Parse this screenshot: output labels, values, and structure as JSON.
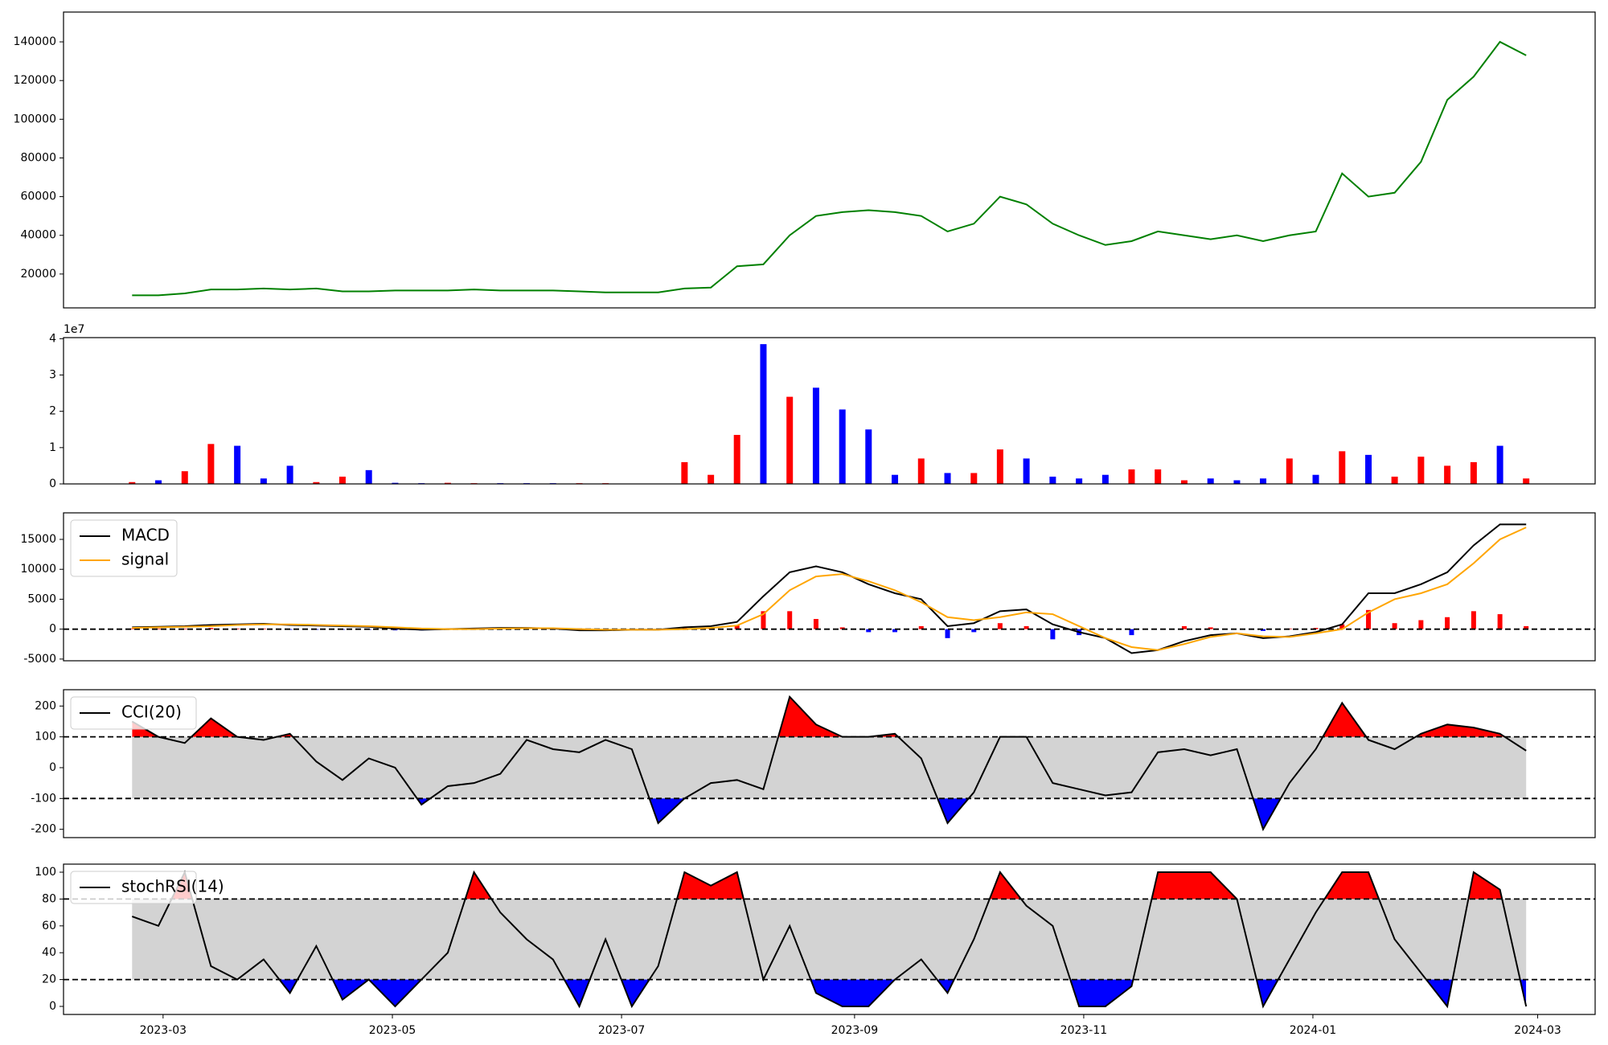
{
  "chart_data": [
    {
      "type": "line",
      "color": "#008000",
      "x": [
        2023.139,
        2023.1582,
        2023.1774,
        2023.1965,
        2023.2157,
        2023.2349,
        2023.2541,
        2023.2733,
        2023.2924,
        2023.3116,
        2023.3308,
        2023.35,
        2023.3692,
        2023.3883,
        2023.4075,
        2023.4267,
        2023.4459,
        2023.4651,
        2023.4842,
        2023.5034,
        2023.5226,
        2023.5418,
        2023.561,
        2023.5801,
        2023.5993,
        2023.6185,
        2023.6377,
        2023.6569,
        2023.676,
        2023.6952,
        2023.7144,
        2023.7336,
        2023.7528,
        2023.7719,
        2023.7911,
        2023.8103,
        2023.8295,
        2023.8487,
        2023.8678,
        2023.887,
        2023.9062,
        2023.9254,
        2023.9446,
        2023.9637,
        2023.9829,
        2024.0021,
        2024.0213,
        2024.0405,
        2024.0596,
        2024.0788,
        2024.098,
        2024.1172,
        2024.1364,
        2024.1555
      ],
      "values": [
        9000,
        9000,
        10000,
        12000,
        12000,
        12500,
        12000,
        12500,
        11000,
        11000,
        11500,
        11500,
        11500,
        12000,
        11500,
        11500,
        11500,
        11000,
        10500,
        10500,
        10500,
        12500,
        13000,
        24000,
        25000,
        40000,
        50000,
        52000,
        53000,
        52000,
        50000,
        42000,
        46000,
        60000,
        56000,
        46000,
        40000,
        35000,
        37000,
        42000,
        40000,
        38000,
        40000,
        37000,
        40000,
        42000,
        72000,
        60000,
        62000,
        78000,
        110000,
        122000,
        140000,
        133000
      ],
      "xlim": [
        2023.089,
        2024.2058
      ],
      "ylim": [
        2500,
        155400
      ],
      "yticks": [
        20000,
        40000,
        60000,
        80000,
        100000,
        120000,
        140000
      ]
    },
    {
      "type": "bar",
      "offset_label": "1e7",
      "x": [
        2023.139,
        2023.1582,
        2023.1774,
        2023.1965,
        2023.2157,
        2023.2349,
        2023.2541,
        2023.2733,
        2023.2924,
        2023.3116,
        2023.3308,
        2023.35,
        2023.3692,
        2023.3883,
        2023.4075,
        2023.4267,
        2023.4459,
        2023.4651,
        2023.4842,
        2023.5034,
        2023.5226,
        2023.5418,
        2023.561,
        2023.5801,
        2023.5993,
        2023.6185,
        2023.6377,
        2023.6569,
        2023.676,
        2023.6952,
        2023.7144,
        2023.7336,
        2023.7528,
        2023.7719,
        2023.7911,
        2023.8103,
        2023.8295,
        2023.8487,
        2023.8678,
        2023.887,
        2023.9062,
        2023.9254,
        2023.9446,
        2023.9637,
        2023.9829,
        2024.0021,
        2024.0213,
        2024.0405,
        2024.0596,
        2024.0788,
        2024.098,
        2024.1172,
        2024.1364,
        2024.1555
      ],
      "values": [
        500000,
        1000000,
        3500000,
        11000000,
        10500000,
        1500000,
        5000000,
        500000,
        2000000,
        3800000,
        300000,
        200000,
        300000,
        200000,
        200000,
        200000,
        200000,
        200000,
        200000,
        100000,
        100000,
        6000000,
        2500000,
        13500000,
        38500000,
        24000000,
        26500000,
        20500000,
        15000000,
        2500000,
        7000000,
        3000000,
        3000000,
        9500000,
        7000000,
        2000000,
        1500000,
        2500000,
        4000000,
        4000000,
        1000000,
        1500000,
        1000000,
        1500000,
        7000000,
        2500000,
        9000000,
        8000000,
        2000000,
        7500000,
        5000000,
        6000000,
        10500000,
        1500000
      ],
      "colors": [
        "red",
        "blue",
        "red",
        "red",
        "blue",
        "blue",
        "blue",
        "red",
        "red",
        "blue",
        "blue",
        "blue",
        "red",
        "red",
        "blue",
        "blue",
        "blue",
        "red",
        "red",
        "blue",
        "red",
        "red",
        "red",
        "red",
        "blue",
        "red",
        "blue",
        "blue",
        "blue",
        "blue",
        "red",
        "blue",
        "red",
        "red",
        "blue",
        "blue",
        "blue",
        "blue",
        "red",
        "red",
        "red",
        "blue",
        "blue",
        "blue",
        "red",
        "blue",
        "red",
        "blue",
        "red",
        "red",
        "red",
        "red",
        "blue",
        "red"
      ],
      "xlim": [
        2023.089,
        2024.2058
      ],
      "ylim": [
        0,
        40300000
      ],
      "yticks": [
        0,
        {
          "value": 10000000,
          "label": "1"
        },
        {
          "value": 20000000,
          "label": "2"
        },
        {
          "value": 30000000,
          "label": "3"
        },
        {
          "value": 40000000,
          "label": "4"
        }
      ]
    },
    {
      "type": "macd",
      "x": [
        2023.139,
        2023.1582,
        2023.1774,
        2023.1965,
        2023.2157,
        2023.2349,
        2023.2541,
        2023.2733,
        2023.2924,
        2023.3116,
        2023.3308,
        2023.35,
        2023.3692,
        2023.3883,
        2023.4075,
        2023.4267,
        2023.4459,
        2023.4651,
        2023.4842,
        2023.5034,
        2023.5226,
        2023.5418,
        2023.561,
        2023.5801,
        2023.5993,
        2023.6185,
        2023.6377,
        2023.6569,
        2023.676,
        2023.6952,
        2023.7144,
        2023.7336,
        2023.7528,
        2023.7719,
        2023.7911,
        2023.8103,
        2023.8295,
        2023.8487,
        2023.8678,
        2023.887,
        2023.9062,
        2023.9254,
        2023.9446,
        2023.9637,
        2023.9829,
        2024.0021,
        2024.0213,
        2024.0405,
        2024.0596,
        2024.0788,
        2024.098,
        2024.1172,
        2024.1364,
        2024.1555
      ],
      "series": [
        {
          "name": "MACD",
          "color": "#000000",
          "values": [
            300,
            400,
            500,
            700,
            800,
            900,
            700,
            600,
            500,
            400,
            100,
            -100,
            0,
            100,
            200,
            200,
            100,
            -200,
            -200,
            -100,
            -100,
            300,
            500,
            1200,
            5500,
            9500,
            10500,
            9500,
            7500,
            6000,
            5000,
            500,
            1000,
            3000,
            3300,
            800,
            -500,
            -1500,
            -4000,
            -3500,
            -2000,
            -1000,
            -700,
            -1500,
            -1200,
            -500,
            800,
            6000,
            6000,
            7500,
            9500,
            14000,
            17500,
            17500
          ]
        },
        {
          "name": "signal",
          "color": "orange",
          "values": [
            200,
            300,
            400,
            500,
            700,
            800,
            800,
            700,
            600,
            500,
            300,
            100,
            0,
            0,
            100,
            150,
            150,
            0,
            -100,
            -100,
            -100,
            0,
            200,
            600,
            2500,
            6500,
            8800,
            9200,
            8000,
            6500,
            4500,
            2000,
            1500,
            2000,
            2800,
            2500,
            500,
            -1500,
            -3000,
            -3500,
            -2500,
            -1300,
            -700,
            -1200,
            -1300,
            -700,
            0,
            2800,
            5000,
            6000,
            7500,
            11000,
            15000,
            17000
          ]
        }
      ],
      "histogram": {
        "up_color": "red",
        "down_color": "blue",
        "values": [
          100,
          100,
          100,
          200,
          100,
          100,
          -100,
          -100,
          -100,
          -100,
          -200,
          -200,
          0,
          100,
          100,
          50,
          -50,
          -200,
          -100,
          0,
          0,
          300,
          300,
          600,
          3000,
          3000,
          1700,
          300,
          -500,
          -500,
          500,
          -1500,
          -500,
          1000,
          500,
          -1700,
          -1000,
          0,
          -1000,
          0,
          500,
          300,
          0,
          -300,
          100,
          200,
          800,
          3200,
          1000,
          1500,
          2000,
          3000,
          2500,
          500
        ]
      },
      "zero_line": true,
      "xlim": [
        2023.089,
        2024.2058
      ],
      "ylim": [
        -5284,
        19432
      ],
      "yticks": [
        -5000,
        0,
        5000,
        10000,
        15000
      ]
    },
    {
      "type": "oscillator",
      "x": [
        2023.139,
        2023.1582,
        2023.1774,
        2023.1965,
        2023.2157,
        2023.2349,
        2023.2541,
        2023.2733,
        2023.2924,
        2023.3116,
        2023.3308,
        2023.35,
        2023.3692,
        2023.3883,
        2023.4075,
        2023.4267,
        2023.4459,
        2023.4651,
        2023.4842,
        2023.5034,
        2023.5226,
        2023.5418,
        2023.561,
        2023.5801,
        2023.5993,
        2023.6185,
        2023.6377,
        2023.6569,
        2023.676,
        2023.6952,
        2023.7144,
        2023.7336,
        2023.7528,
        2023.7719,
        2023.7911,
        2023.8103,
        2023.8295,
        2023.8487,
        2023.8678,
        2023.887,
        2023.9062,
        2023.9254,
        2023.9446,
        2023.9637,
        2023.9829,
        2024.0021,
        2024.0213,
        2024.0405,
        2024.0596,
        2024.0788,
        2024.098,
        2024.1172,
        2024.1364,
        2024.1555
      ],
      "series": [
        {
          "name": "CCI(20)",
          "color": "#000000",
          "values": [
            150,
            100,
            80,
            160,
            100,
            90,
            110,
            20,
            -40,
            30,
            0,
            -120,
            -60,
            -50,
            -20,
            90,
            60,
            50,
            90,
            60,
            -180,
            -100,
            -50,
            -40,
            -70,
            230,
            140,
            100,
            100,
            110,
            30,
            -180,
            -80,
            100,
            100,
            -50,
            -70,
            -90,
            -80,
            50,
            60,
            40,
            60,
            -200,
            -50,
            60,
            210,
            90,
            60,
            110,
            140,
            130,
            110,
            55
          ]
        }
      ],
      "thresholds": [
        -100,
        100
      ],
      "band_color": "lightgray",
      "over_color": "red",
      "under_color": "blue",
      "xlim": [
        2023.089,
        2024.2058
      ],
      "ylim": [
        -227,
        253
      ],
      "yticks": [
        -200,
        -100,
        0,
        100,
        200
      ]
    },
    {
      "type": "oscillator",
      "x": [
        2023.139,
        2023.1582,
        2023.1774,
        2023.1965,
        2023.2157,
        2023.2349,
        2023.2541,
        2023.2733,
        2023.2924,
        2023.3116,
        2023.3308,
        2023.35,
        2023.3692,
        2023.3883,
        2023.4075,
        2023.4267,
        2023.4459,
        2023.4651,
        2023.4842,
        2023.5034,
        2023.5226,
        2023.5418,
        2023.561,
        2023.5801,
        2023.5993,
        2023.6185,
        2023.6377,
        2023.6569,
        2023.676,
        2023.6952,
        2023.7144,
        2023.7336,
        2023.7528,
        2023.7719,
        2023.7911,
        2023.8103,
        2023.8295,
        2023.8487,
        2023.8678,
        2023.887,
        2023.9062,
        2023.9254,
        2023.9446,
        2023.9637,
        2023.9829,
        2024.0021,
        2024.0213,
        2024.0405,
        2024.0596,
        2024.0788,
        2024.098,
        2024.1172,
        2024.1364,
        2024.1555
      ],
      "series": [
        {
          "name": "stochRSI(14)",
          "color": "#000000",
          "values": [
            67,
            60,
            100,
            30,
            20,
            35,
            10,
            45,
            5,
            20,
            0,
            20,
            40,
            100,
            70,
            50,
            35,
            0,
            50,
            0,
            30,
            100,
            90,
            100,
            20,
            60,
            10,
            0,
            0,
            20,
            35,
            10,
            50,
            100,
            75,
            60,
            0,
            0,
            15,
            100,
            100,
            100,
            80,
            0,
            35,
            70,
            100,
            100,
            50,
            25,
            0,
            100,
            87,
            0
          ]
        }
      ],
      "thresholds": [
        20,
        80
      ],
      "band_color": "lightgray",
      "over_color": "red",
      "under_color": "blue",
      "xlim": [
        2023.089,
        2024.2058
      ],
      "ylim": [
        -6,
        106
      ],
      "yticks": [
        0,
        20,
        40,
        60,
        80,
        100
      ],
      "xticks": [
        {
          "value": 2023.1616,
          "label": "2023-03"
        },
        {
          "value": 2023.3288,
          "label": "2023-05"
        },
        {
          "value": 2023.4959,
          "label": "2023-07"
        },
        {
          "value": 2023.6658,
          "label": "2023-09"
        },
        {
          "value": 2023.8329,
          "label": "2023-11"
        },
        {
          "value": 2024.0,
          "label": "2024-01"
        },
        {
          "value": 2024.1639,
          "label": "2024-03"
        }
      ]
    }
  ]
}
